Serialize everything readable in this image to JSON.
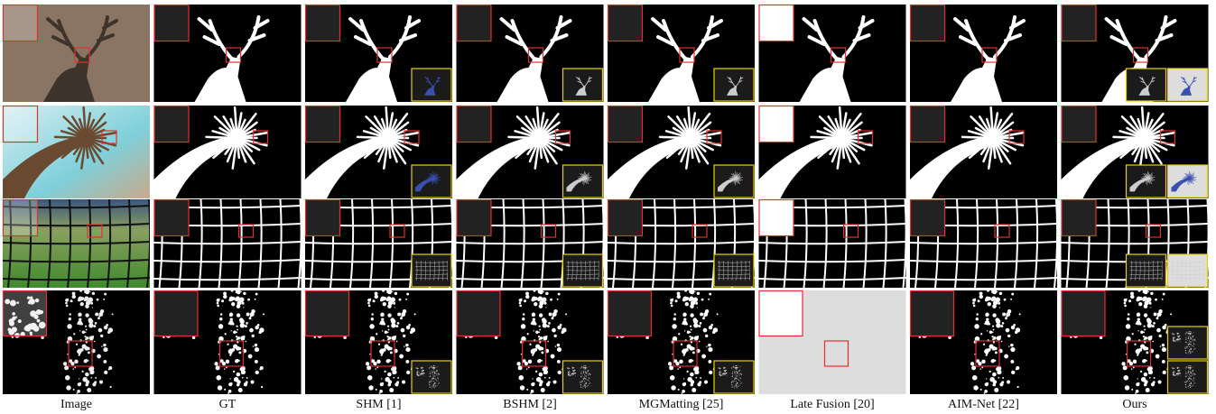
{
  "figure": {
    "columns": [
      "Image",
      "GT",
      "SHM [1]",
      "BSHM [2]",
      "MGMatting [25]",
      "Late Fusion [20]",
      "AIM-Net [22]",
      "Ours"
    ]
  }
}
